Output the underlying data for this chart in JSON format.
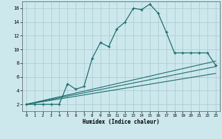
{
  "xlabel": "Humidex (Indice chaleur)",
  "bg_color": "#cce8ec",
  "grid_color": "#aacdd4",
  "line_color": "#1a6b6b",
  "xlim": [
    -0.5,
    23.5
  ],
  "ylim": [
    1.0,
    17.0
  ],
  "xticks": [
    0,
    1,
    2,
    3,
    4,
    5,
    6,
    7,
    8,
    9,
    10,
    11,
    12,
    13,
    14,
    15,
    16,
    17,
    18,
    19,
    20,
    21,
    22,
    23
  ],
  "yticks": [
    2,
    4,
    6,
    8,
    10,
    12,
    14,
    16
  ],
  "main_x": [
    0,
    1,
    2,
    3,
    4,
    5,
    6,
    7,
    8,
    9,
    10,
    11,
    12,
    13,
    14,
    15,
    16,
    17,
    18,
    19,
    20,
    21,
    22,
    23
  ],
  "main_y": [
    2,
    2,
    2,
    2,
    2,
    5,
    4.2,
    4.6,
    8.7,
    11,
    10.4,
    13,
    14,
    16,
    15.8,
    16.6,
    15.3,
    12.5,
    9.5,
    9.5,
    9.5,
    9.5,
    9.5,
    7.7
  ],
  "line1_x": [
    0,
    23
  ],
  "line1_y": [
    2,
    8.3
  ],
  "line2_x": [
    0,
    23
  ],
  "line2_y": [
    2,
    7.5
  ],
  "line3_x": [
    0,
    23
  ],
  "line3_y": [
    2,
    6.5
  ],
  "figsize": [
    3.2,
    2.0
  ],
  "dpi": 100
}
